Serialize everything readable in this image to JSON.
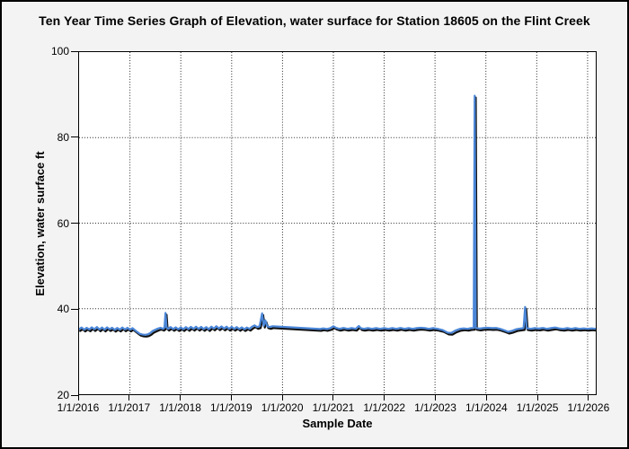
{
  "window": {
    "background_color": "#f3f3f3",
    "border_color": "#000000",
    "plot_background_color": "#ffffff"
  },
  "title": "Ten Year Time Series Graph of Elevation, water surface for Station 18605 on the Flint Creek",
  "chart_data": {
    "type": "line",
    "title": "Ten Year Time Series Graph of Elevation, water surface for Station 18605 on the Flint Creek",
    "xlabel": "Sample Date",
    "ylabel": "Elevation, water surface ft",
    "legend_position": "none",
    "grid": {
      "style": "dotted",
      "color": "#2a2a2a",
      "horizontal_at": [
        40,
        60,
        80
      ],
      "vertical_at": [
        2017,
        2018,
        2019,
        2020,
        2021,
        2022,
        2023,
        2024,
        2025,
        2026
      ]
    },
    "xlim": [
      2016.0,
      2026.16
    ],
    "ylim": [
      20,
      100
    ],
    "y_tick_values": [
      100,
      80,
      60,
      40,
      20
    ],
    "x_tick_values": [
      2016,
      2017,
      2018,
      2019,
      2020,
      2021,
      2022,
      2023,
      2024,
      2025,
      2026
    ],
    "x_tick_labels": [
      "1/1/2016",
      "1/1/2017",
      "1/1/2018",
      "1/1/2019",
      "1/1/2020",
      "1/1/2021",
      "1/1/2022",
      "1/1/2023",
      "1/1/2024",
      "1/1/2025",
      "1/1/2026"
    ],
    "notable_events": [
      {
        "date": "mid 2017",
        "value": 33.9,
        "kind": "dip"
      },
      {
        "date": "Sep 2017",
        "value": 39.0,
        "kind": "spike"
      },
      {
        "date": "Aug 2019",
        "value": 38.9,
        "kind": "spike"
      },
      {
        "date": "Oct 2023",
        "value": 89.8,
        "kind": "spike"
      },
      {
        "date": "Oct 2024",
        "value": 40.4,
        "kind": "spike"
      }
    ],
    "series": [
      {
        "name": "Elevation, water surface",
        "color": "#4a86d8",
        "shadow_color": "#101010",
        "points": [
          [
            2016.0,
            35.2
          ],
          [
            2016.05,
            35.6
          ],
          [
            2016.1,
            35.1
          ],
          [
            2016.15,
            35.55
          ],
          [
            2016.2,
            35.15
          ],
          [
            2016.25,
            35.65
          ],
          [
            2016.3,
            35.2
          ],
          [
            2016.35,
            35.7
          ],
          [
            2016.4,
            35.15
          ],
          [
            2016.45,
            35.6
          ],
          [
            2016.5,
            35.1
          ],
          [
            2016.55,
            35.65
          ],
          [
            2016.6,
            35.2
          ],
          [
            2016.65,
            35.55
          ],
          [
            2016.7,
            35.05
          ],
          [
            2016.75,
            35.5
          ],
          [
            2016.8,
            35.1
          ],
          [
            2016.85,
            35.6
          ],
          [
            2016.9,
            35.15
          ],
          [
            2016.95,
            35.55
          ],
          [
            2017.0,
            35.1
          ],
          [
            2017.05,
            35.45
          ],
          [
            2017.1,
            34.95
          ],
          [
            2017.15,
            34.5
          ],
          [
            2017.2,
            34.1
          ],
          [
            2017.25,
            33.95
          ],
          [
            2017.3,
            33.9
          ],
          [
            2017.35,
            34.0
          ],
          [
            2017.4,
            34.3
          ],
          [
            2017.45,
            34.8
          ],
          [
            2017.5,
            35.1
          ],
          [
            2017.55,
            35.35
          ],
          [
            2017.6,
            35.55
          ],
          [
            2017.65,
            35.3
          ],
          [
            2017.68,
            35.6
          ],
          [
            2017.7,
            39.0
          ],
          [
            2017.72,
            35.6
          ],
          [
            2017.75,
            35.3
          ],
          [
            2017.8,
            35.7
          ],
          [
            2017.85,
            35.25
          ],
          [
            2017.9,
            35.65
          ],
          [
            2017.95,
            35.2
          ],
          [
            2018.0,
            35.6
          ],
          [
            2018.05,
            35.2
          ],
          [
            2018.1,
            35.7
          ],
          [
            2018.15,
            35.25
          ],
          [
            2018.2,
            35.75
          ],
          [
            2018.25,
            35.3
          ],
          [
            2018.3,
            35.8
          ],
          [
            2018.35,
            35.3
          ],
          [
            2018.4,
            35.75
          ],
          [
            2018.45,
            35.25
          ],
          [
            2018.5,
            35.7
          ],
          [
            2018.55,
            35.2
          ],
          [
            2018.6,
            35.8
          ],
          [
            2018.65,
            35.35
          ],
          [
            2018.7,
            35.9
          ],
          [
            2018.75,
            35.4
          ],
          [
            2018.8,
            35.85
          ],
          [
            2018.85,
            35.35
          ],
          [
            2018.9,
            35.8
          ],
          [
            2018.95,
            35.3
          ],
          [
            2019.0,
            35.75
          ],
          [
            2019.05,
            35.3
          ],
          [
            2019.1,
            35.7
          ],
          [
            2019.15,
            35.25
          ],
          [
            2019.2,
            35.65
          ],
          [
            2019.25,
            35.2
          ],
          [
            2019.3,
            35.6
          ],
          [
            2019.35,
            35.3
          ],
          [
            2019.4,
            35.8
          ],
          [
            2019.45,
            36.1
          ],
          [
            2019.5,
            35.7
          ],
          [
            2019.55,
            35.9
          ],
          [
            2019.6,
            38.9
          ],
          [
            2019.63,
            36.0
          ],
          [
            2019.66,
            37.3
          ],
          [
            2019.7,
            35.9
          ],
          [
            2019.75,
            35.7
          ],
          [
            2019.8,
            35.9
          ],
          [
            2019.86,
            35.85
          ],
          [
            2020.74,
            35.25
          ],
          [
            2020.8,
            35.4
          ],
          [
            2020.87,
            35.25
          ],
          [
            2020.94,
            35.45
          ],
          [
            2021.0,
            35.9
          ],
          [
            2021.05,
            35.55
          ],
          [
            2021.12,
            35.3
          ],
          [
            2021.2,
            35.5
          ],
          [
            2021.28,
            35.3
          ],
          [
            2021.36,
            35.45
          ],
          [
            2021.44,
            35.3
          ],
          [
            2021.5,
            35.95
          ],
          [
            2021.54,
            35.45
          ],
          [
            2021.6,
            35.3
          ],
          [
            2021.68,
            35.45
          ],
          [
            2021.76,
            35.3
          ],
          [
            2021.84,
            35.45
          ],
          [
            2021.92,
            35.3
          ],
          [
            2022.0,
            35.45
          ],
          [
            2022.08,
            35.3
          ],
          [
            2022.16,
            35.45
          ],
          [
            2022.24,
            35.3
          ],
          [
            2022.32,
            35.5
          ],
          [
            2022.4,
            35.3
          ],
          [
            2022.48,
            35.45
          ],
          [
            2022.56,
            35.3
          ],
          [
            2022.64,
            35.45
          ],
          [
            2022.72,
            35.55
          ],
          [
            2022.8,
            35.45
          ],
          [
            2022.88,
            35.3
          ],
          [
            2022.96,
            35.45
          ],
          [
            2023.05,
            35.3
          ],
          [
            2023.15,
            35.0
          ],
          [
            2023.25,
            34.4
          ],
          [
            2023.32,
            34.35
          ],
          [
            2023.4,
            34.9
          ],
          [
            2023.48,
            35.25
          ],
          [
            2023.56,
            35.4
          ],
          [
            2023.64,
            35.3
          ],
          [
            2023.7,
            35.45
          ],
          [
            2023.76,
            35.5
          ],
          [
            2023.78,
            89.8
          ],
          [
            2023.8,
            35.5
          ],
          [
            2023.88,
            35.35
          ],
          [
            2023.96,
            35.5
          ],
          [
            2024.04,
            35.55
          ],
          [
            2024.12,
            35.45
          ],
          [
            2024.2,
            35.5
          ],
          [
            2024.28,
            35.3
          ],
          [
            2024.36,
            34.95
          ],
          [
            2024.44,
            34.6
          ],
          [
            2024.52,
            34.85
          ],
          [
            2024.6,
            35.2
          ],
          [
            2024.68,
            35.35
          ],
          [
            2024.74,
            35.45
          ],
          [
            2024.77,
            40.4
          ],
          [
            2024.8,
            35.45
          ],
          [
            2024.88,
            35.3
          ],
          [
            2024.96,
            35.45
          ],
          [
            2025.04,
            35.35
          ],
          [
            2025.12,
            35.5
          ],
          [
            2025.2,
            35.3
          ],
          [
            2025.28,
            35.45
          ],
          [
            2025.36,
            35.6
          ],
          [
            2025.44,
            35.4
          ],
          [
            2025.52,
            35.3
          ],
          [
            2025.6,
            35.45
          ],
          [
            2025.68,
            35.3
          ],
          [
            2025.76,
            35.45
          ],
          [
            2025.84,
            35.3
          ],
          [
            2025.92,
            35.4
          ],
          [
            2026.0,
            35.3
          ],
          [
            2026.08,
            35.4
          ],
          [
            2026.16,
            35.3
          ]
        ]
      }
    ]
  }
}
